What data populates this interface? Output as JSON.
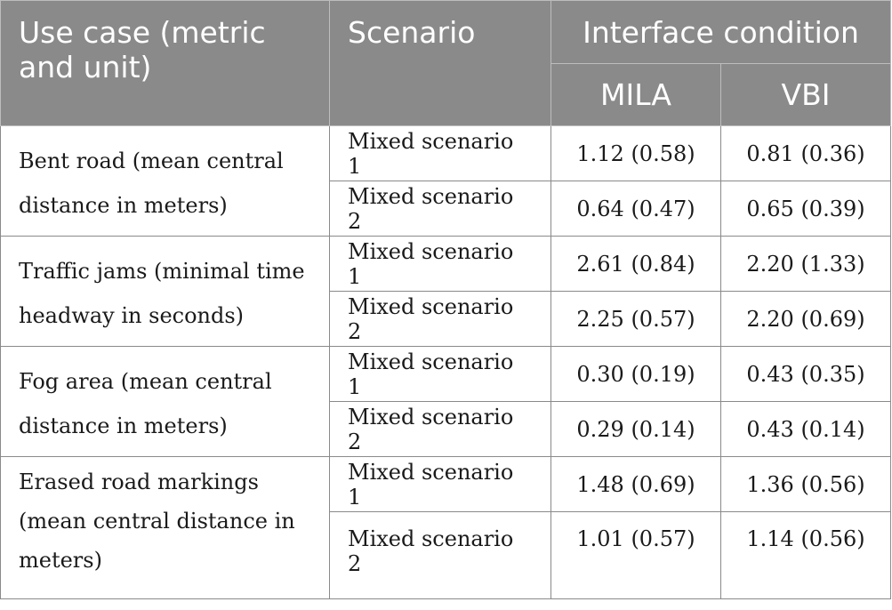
{
  "header": {
    "use_case": "Use case (metric and unit)",
    "scenario": "Scenario",
    "interface_condition": "Interface condition",
    "mila": "MILA",
    "vbi": "VBI"
  },
  "rows": [
    {
      "use_case": "Bent road (mean central distance in meters)",
      "s1": "Mixed scenario 1",
      "s1_mila": "1.12 (0.58)",
      "s1_vbi": "0.81 (0.36)",
      "s2": "Mixed scenario 2",
      "s2_mila": "0.64 (0.47)",
      "s2_vbi": "0.65 (0.39)"
    },
    {
      "use_case": "Traffic jams (minimal time headway in seconds)",
      "s1": "Mixed scenario 1",
      "s1_mila": "2.61 (0.84)",
      "s1_vbi": "2.20 (1.33)",
      "s2": "Mixed scenario 2",
      "s2_mila": "2.25 (0.57)",
      "s2_vbi": "2.20 (0.69)"
    },
    {
      "use_case": "Fog area (mean central distance in meters)",
      "s1": "Mixed scenario 1",
      "s1_mila": "0.30 (0.19)",
      "s1_vbi": "0.43 (0.35)",
      "s2": "Mixed scenario 2",
      "s2_mila": "0.29 (0.14)",
      "s2_vbi": "0.43 (0.14)"
    },
    {
      "use_case": "Erased road markings (mean central distance in meters)",
      "s1": "Mixed scenario 1",
      "s1_mila": "1.48 (0.69)",
      "s1_vbi": "1.36 (0.56)",
      "s2": "Mixed scenario 2",
      "s2_mila": "1.01 (0.57)",
      "s2_vbi": "1.14 (0.56)"
    }
  ]
}
